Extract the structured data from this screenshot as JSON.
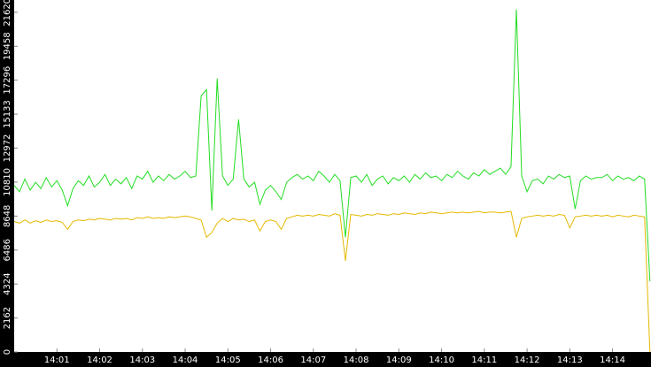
{
  "chart_data": {
    "type": "line",
    "x": [
      0,
      0.125,
      0.25,
      0.375,
      0.5,
      0.625,
      0.75,
      0.875,
      1,
      1.125,
      1.25,
      1.375,
      1.5,
      1.625,
      1.75,
      1.875,
      2,
      2.125,
      2.25,
      2.375,
      2.5,
      2.625,
      2.75,
      2.875,
      3,
      3.125,
      3.25,
      3.375,
      3.5,
      3.625,
      3.75,
      3.875,
      4,
      4.125,
      4.25,
      4.375,
      4.5,
      4.625,
      4.75,
      4.875,
      5,
      5.125,
      5.25,
      5.375,
      5.5,
      5.625,
      5.75,
      5.875,
      6,
      6.125,
      6.25,
      6.375,
      6.5,
      6.625,
      6.75,
      6.875,
      7,
      7.125,
      7.25,
      7.375,
      7.5,
      7.625,
      7.75,
      7.875,
      8,
      8.125,
      8.25,
      8.375,
      8.5,
      8.625,
      8.75,
      8.875,
      9,
      9.125,
      9.25,
      9.375,
      9.5,
      9.625,
      9.75,
      9.875,
      10,
      10.125,
      10.25,
      10.375,
      10.5,
      10.625,
      10.75,
      10.875,
      11,
      11.125,
      11.25,
      11.375,
      11.5,
      11.625,
      11.75,
      11.875,
      12,
      12.125,
      12.25,
      12.375,
      12.5,
      12.625,
      12.75,
      12.875,
      13,
      13.125,
      13.25,
      13.375,
      13.5,
      13.625,
      13.75,
      13.875,
      14,
      14.125,
      14.25,
      14.375,
      14.5,
      14.625,
      14.75,
      14.875
    ],
    "series": [
      {
        "color": "#22dd22",
        "values": [
          10600,
          10200,
          11000,
          10300,
          10800,
          10400,
          11100,
          10500,
          10900,
          10300,
          9300,
          10400,
          10900,
          10600,
          11200,
          10500,
          10800,
          11300,
          10600,
          11000,
          10700,
          11100,
          10400,
          11200,
          11000,
          11500,
          10800,
          11200,
          10900,
          11300,
          11000,
          11200,
          11500,
          11100,
          11200,
          16300,
          16700,
          9000,
          17400,
          11200,
          10600,
          11000,
          14800,
          11000,
          10500,
          10800,
          9400,
          10300,
          10600,
          10200,
          9700,
          10800,
          11100,
          11300,
          11000,
          11200,
          10900,
          11500,
          11200,
          10800,
          11300,
          10900,
          7300,
          11100,
          11200,
          10800,
          11300,
          10600,
          11000,
          11200,
          10700,
          11100,
          10900,
          11200,
          10800,
          11300,
          11000,
          11400,
          11100,
          11200,
          10900,
          11300,
          11100,
          11500,
          11200,
          11000,
          11400,
          11200,
          11600,
          11300,
          11500,
          11700,
          11300,
          11800,
          21800,
          11200,
          10200,
          10900,
          11000,
          10700,
          11200,
          11000,
          11300,
          11100,
          11200,
          9100,
          10900,
          11200,
          11000,
          11100,
          11100,
          11300,
          10900,
          11200,
          11000,
          11100,
          10900,
          11200,
          11000,
          4500
        ]
      },
      {
        "color": "#e6b800",
        "values": [
          8300,
          8200,
          8400,
          8200,
          8350,
          8250,
          8400,
          8300,
          8350,
          8250,
          7800,
          8300,
          8400,
          8350,
          8450,
          8400,
          8500,
          8450,
          8400,
          8500,
          8450,
          8500,
          8400,
          8550,
          8500,
          8600,
          8500,
          8550,
          8500,
          8600,
          8550,
          8600,
          8650,
          8600,
          8500,
          8400,
          7300,
          7600,
          8200,
          8500,
          8300,
          8500,
          8400,
          8450,
          8300,
          8400,
          7700,
          8300,
          8400,
          8300,
          7800,
          8500,
          8600,
          8700,
          8650,
          8700,
          8650,
          8750,
          8700,
          8650,
          8800,
          8700,
          5800,
          8750,
          8700,
          8650,
          8750,
          8700,
          8800,
          8750,
          8700,
          8800,
          8750,
          8850,
          8800,
          8750,
          8850,
          8800,
          8900,
          8850,
          8800,
          8850,
          8900,
          8850,
          8900,
          8850,
          8900,
          8950,
          8850,
          8900,
          8900,
          8850,
          8900,
          8950,
          7300,
          8500,
          8600,
          8650,
          8700,
          8650,
          8700,
          8650,
          8750,
          8700,
          7900,
          8600,
          8650,
          8700,
          8650,
          8700,
          8650,
          8700,
          8600,
          8700,
          8650,
          8600,
          8700,
          8650,
          8600,
          0
        ]
      }
    ],
    "xlim": [
      0,
      14.9
    ],
    "xticks": [
      {
        "value": 1,
        "label": "14:01"
      },
      {
        "value": 2,
        "label": "14:02"
      },
      {
        "value": 3,
        "label": "14:03"
      },
      {
        "value": 4,
        "label": "14:04"
      },
      {
        "value": 5,
        "label": "14:05"
      },
      {
        "value": 6,
        "label": "14:06"
      },
      {
        "value": 7,
        "label": "14:07"
      },
      {
        "value": 8,
        "label": "14:08"
      },
      {
        "value": 9,
        "label": "14:09"
      },
      {
        "value": 10,
        "label": "14:10"
      },
      {
        "value": 11,
        "label": "14:11"
      },
      {
        "value": 12,
        "label": "14:12"
      },
      {
        "value": 13,
        "label": "14:13"
      },
      {
        "value": 14,
        "label": "14:14"
      }
    ],
    "ylim": [
      0,
      22400
    ],
    "yticks": [
      0,
      2162,
      4324,
      6486,
      8648,
      10810,
      12972,
      15133,
      17296,
      19458,
      21620
    ]
  }
}
